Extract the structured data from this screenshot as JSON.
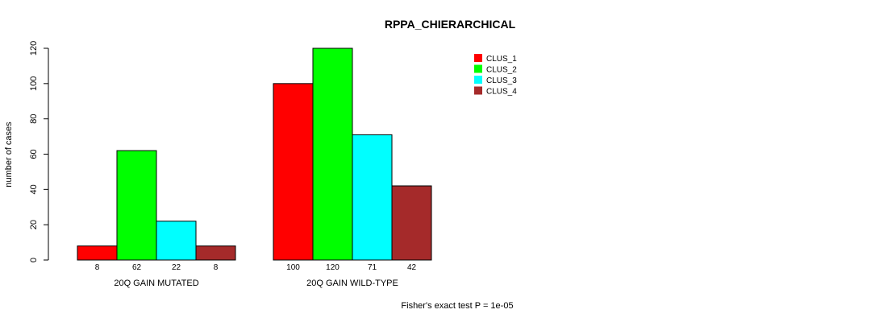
{
  "chart_data": {
    "type": "bar",
    "title": "RPPA_CHIERARCHICAL",
    "ylabel": "number of cases",
    "xlabel": "",
    "ylim": [
      0,
      120
    ],
    "yticks": [
      0,
      20,
      40,
      60,
      80,
      100,
      120
    ],
    "categories": [
      "20Q GAIN MUTATED",
      "20Q GAIN WILD-TYPE"
    ],
    "series": [
      {
        "name": "CLUS_1",
        "color": "#ff0000",
        "values": [
          8,
          100
        ]
      },
      {
        "name": "CLUS_2",
        "color": "#00ff00",
        "values": [
          62,
          120
        ]
      },
      {
        "name": "CLUS_3",
        "color": "#00ffff",
        "values": [
          22,
          71
        ]
      },
      {
        "name": "CLUS_4",
        "color": "#a52a2a",
        "values": [
          8,
          42
        ]
      }
    ],
    "legend_position": "top-right",
    "footnote": "Fisher's exact test P = 1e-05"
  }
}
